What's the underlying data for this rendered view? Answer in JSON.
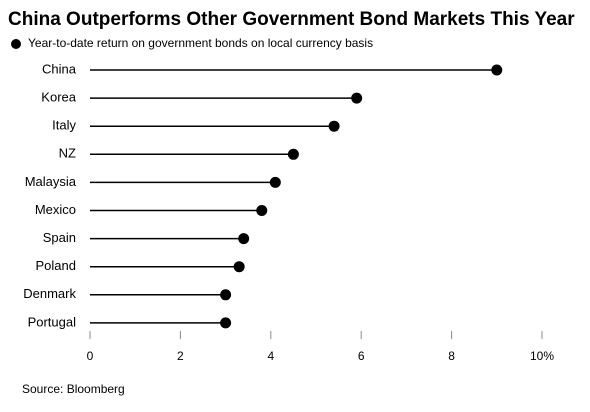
{
  "chart_data": {
    "type": "lollipop",
    "title": "China Outperforms Other Government Bond Markets This Year",
    "categories": [
      "China",
      "Korea",
      "Italy",
      "NZ",
      "Malaysia",
      "Mexico",
      "Spain",
      "Poland",
      "Denmark",
      "Portugal"
    ],
    "series": [
      {
        "name": "Year-to-date return on government bonds on local currency basis",
        "color": "#000000",
        "values": [
          9.0,
          5.9,
          5.4,
          4.5,
          4.1,
          3.8,
          3.4,
          3.3,
          3.0,
          3.0
        ]
      }
    ],
    "xlim": [
      0,
      10
    ],
    "xticks": [
      0,
      2,
      4,
      6,
      8,
      {
        "value": 10,
        "label": "10%"
      }
    ],
    "source": "Source: Bloomberg"
  }
}
